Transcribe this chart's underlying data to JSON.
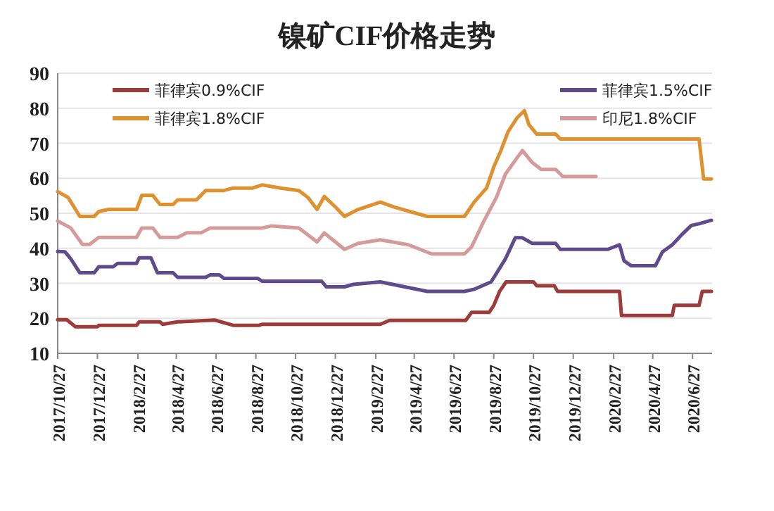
{
  "chart_data": {
    "type": "line",
    "title": "镍矿CIF价格走势",
    "xlim": [
      "2017-10-27",
      "2020-07-27"
    ],
    "xticks": [
      {
        "value": "2017-10-27",
        "label": "2017/10/27"
      },
      {
        "value": "2017-12-27",
        "label": "2017/12/27"
      },
      {
        "value": "2018-02-27",
        "label": "2018/2/27"
      },
      {
        "value": "2018-04-27",
        "label": "2018/4/27"
      },
      {
        "value": "2018-06-27",
        "label": "2018/6/27"
      },
      {
        "value": "2018-08-27",
        "label": "2018/8/27"
      },
      {
        "value": "2018-10-27",
        "label": "2018/10/27"
      },
      {
        "value": "2018-12-27",
        "label": "2018/12/27"
      },
      {
        "value": "2019-02-27",
        "label": "2019/2/27"
      },
      {
        "value": "2019-04-27",
        "label": "2019/4/27"
      },
      {
        "value": "2019-06-27",
        "label": "2019/6/27"
      },
      {
        "value": "2019-08-27",
        "label": "2019/8/27"
      },
      {
        "value": "2019-10-27",
        "label": "2019/10/27"
      },
      {
        "value": "2019-12-27",
        "label": "2019/12/27"
      },
      {
        "value": "2020-02-27",
        "label": "2020/2/27"
      },
      {
        "value": "2020-04-27",
        "label": "2020/4/27"
      },
      {
        "value": "2020-06-27",
        "label": "2020/6/27"
      }
    ],
    "ylim": [
      10,
      90
    ],
    "yticks": [
      10,
      20,
      30,
      40,
      50,
      60,
      70,
      80,
      90
    ],
    "grid": "y",
    "legend": "top",
    "marker": "none",
    "line_style": "solid",
    "series": [
      {
        "name": "菲律宾0.9%CIF",
        "color": "#9c3b3a",
        "x": [
          "2017-10-27",
          "2017-11-10",
          "2017-11-23",
          "2017-12-27",
          "2017-12-29",
          "2018-02-25",
          "2018-03-01",
          "2018-04-02",
          "2018-04-06",
          "2018-04-29",
          "2018-06-25",
          "2018-07-23",
          "2018-09-01",
          "2018-09-06",
          "2019-03-06",
          "2019-03-20",
          "2019-07-15",
          "2019-07-24",
          "2019-08-20",
          "2019-08-27",
          "2019-09-05",
          "2019-09-15",
          "2019-10-27",
          "2019-11-01",
          "2019-11-28",
          "2019-12-03",
          "2020-03-07",
          "2020-03-10",
          "2020-05-27",
          "2020-05-30",
          "2020-07-07",
          "2020-07-12",
          "2020-07-26"
        ],
        "values": [
          19.6,
          19.6,
          17.6,
          17.6,
          18,
          18,
          19,
          19,
          18.3,
          19,
          19.5,
          18,
          18,
          18.3,
          18.3,
          19.4,
          19.4,
          21.7,
          21.7,
          23.7,
          27.7,
          30.4,
          30.4,
          29.3,
          29.3,
          27.7,
          27.7,
          20.8,
          20.8,
          23.7,
          23.7,
          27.7,
          27.7
        ]
      },
      {
        "name": "菲律宾1.5%CIF",
        "color": "#5f4b8b",
        "x": [
          "2017-10-27",
          "2017-11-07",
          "2017-11-16",
          "2017-11-30",
          "2017-12-22",
          "2017-12-29",
          "2018-01-20",
          "2018-01-27",
          "2018-02-25",
          "2018-03-01",
          "2018-03-19",
          "2018-03-29",
          "2018-04-22",
          "2018-04-29",
          "2018-06-11",
          "2018-06-18",
          "2018-07-02",
          "2018-07-09",
          "2018-08-30",
          "2018-09-06",
          "2018-12-06",
          "2018-12-13",
          "2019-01-10",
          "2019-01-24",
          "2019-03-06",
          "2019-05-17",
          "2019-07-13",
          "2019-07-28",
          "2019-08-23",
          "2019-09-03",
          "2019-09-14",
          "2019-09-29",
          "2019-10-10",
          "2019-10-25",
          "2019-11-30",
          "2019-12-07",
          "2020-02-18",
          "2020-03-07",
          "2020-03-14",
          "2020-03-25",
          "2020-05-01",
          "2020-05-12",
          "2020-05-27",
          "2020-06-10",
          "2020-06-25",
          "2020-07-07",
          "2020-07-26"
        ],
        "values": [
          39.1,
          39,
          37,
          33,
          33,
          34.7,
          34.7,
          35.7,
          35.7,
          37.3,
          37.3,
          33,
          33,
          31.7,
          31.7,
          32.4,
          32.4,
          31.4,
          31.4,
          30.6,
          30.6,
          29,
          29,
          29.7,
          30.4,
          27.7,
          27.7,
          28.3,
          30.4,
          33.7,
          37,
          43,
          43,
          41.4,
          41.4,
          39.7,
          39.7,
          41,
          36.4,
          35,
          35,
          39,
          41,
          43.8,
          46.5,
          47,
          48
        ]
      },
      {
        "name": "菲律宾1.8%CIF",
        "color": "#e0912f",
        "x": [
          "2017-10-27",
          "2017-11-12",
          "2017-11-30",
          "2017-12-22",
          "2017-12-29",
          "2018-01-13",
          "2018-02-25",
          "2018-03-05",
          "2018-03-22",
          "2018-04-02",
          "2018-04-22",
          "2018-04-29",
          "2018-05-28",
          "2018-06-11",
          "2018-07-09",
          "2018-07-23",
          "2018-08-22",
          "2018-09-06",
          "2018-10-04",
          "2018-11-01",
          "2018-11-15",
          "2018-11-29",
          "2018-12-10",
          "2018-12-27",
          "2019-01-10",
          "2019-01-31",
          "2019-03-06",
          "2019-03-27",
          "2019-05-17",
          "2019-07-13",
          "2019-07-28",
          "2019-08-16",
          "2019-08-27",
          "2019-09-07",
          "2019-09-18",
          "2019-10-02",
          "2019-10-13",
          "2019-10-20",
          "2019-11-01",
          "2019-11-30",
          "2019-12-07",
          "2020-07-07",
          "2020-07-14",
          "2020-07-26"
        ],
        "values": [
          56.2,
          54.5,
          49.1,
          49.1,
          50.5,
          51.1,
          51.1,
          55.1,
          55.1,
          52.5,
          52.5,
          53.8,
          53.8,
          56.5,
          56.5,
          57.2,
          57.2,
          58.1,
          57.2,
          56.5,
          54.5,
          51.1,
          54.8,
          51.8,
          49.1,
          51.1,
          53.2,
          51.8,
          49.1,
          49.1,
          53.2,
          57.2,
          63.2,
          67.9,
          73.3,
          77.3,
          79.3,
          75.3,
          72.6,
          72.6,
          71.2,
          71.2,
          59.8,
          59.8
        ]
      },
      {
        "name": "印尼1.8%CIF",
        "color": "#d59b9a",
        "x": [
          "2017-10-27",
          "2017-11-16",
          "2017-12-04",
          "2017-12-15",
          "2017-12-29",
          "2018-02-25",
          "2018-03-05",
          "2018-03-22",
          "2018-04-02",
          "2018-04-29",
          "2018-05-13",
          "2018-06-04",
          "2018-06-18",
          "2018-09-06",
          "2018-09-20",
          "2018-11-01",
          "2018-11-15",
          "2018-11-29",
          "2018-12-10",
          "2018-12-27",
          "2019-01-10",
          "2019-01-31",
          "2019-03-06",
          "2019-04-18",
          "2019-05-24",
          "2019-07-13",
          "2019-07-24",
          "2019-08-12",
          "2019-08-31",
          "2019-09-14",
          "2019-10-02",
          "2019-10-10",
          "2019-10-25",
          "2019-11-08",
          "2019-11-30",
          "2019-12-11",
          "2020-01-31"
        ],
        "values": [
          47.8,
          45.8,
          41.1,
          41.1,
          43.1,
          43.1,
          45.8,
          45.8,
          43.1,
          43.1,
          44.4,
          44.4,
          45.8,
          45.8,
          46.4,
          45.8,
          43.8,
          41.8,
          44.4,
          41.8,
          39.7,
          41.4,
          42.4,
          41,
          38.4,
          38.4,
          40.4,
          47.8,
          54.5,
          61.2,
          65.9,
          67.9,
          64.5,
          62.5,
          62.5,
          60.5,
          60.5
        ]
      }
    ]
  }
}
